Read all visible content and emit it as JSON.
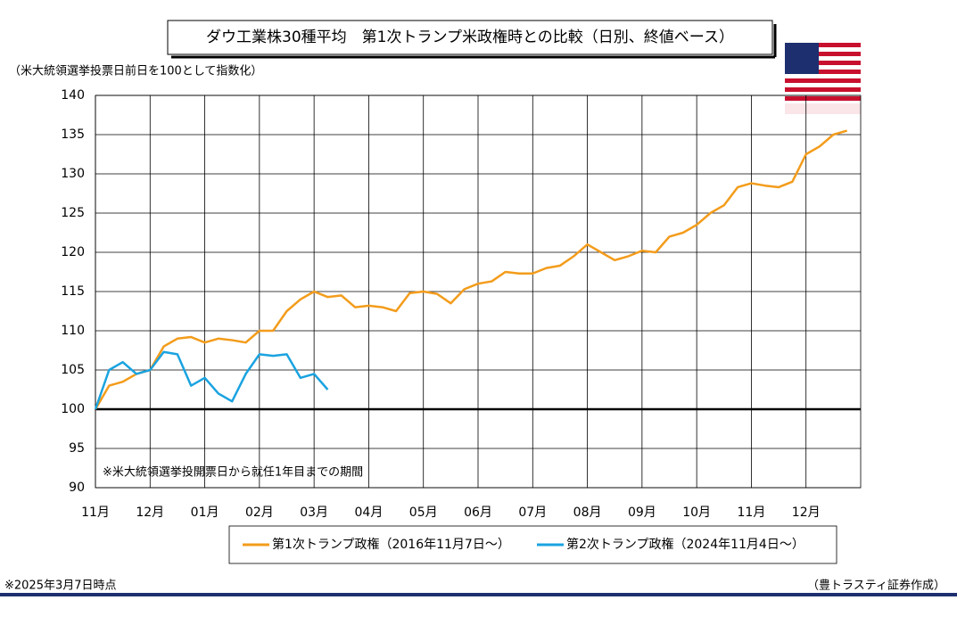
{
  "chart_data": {
    "type": "line",
    "title": "ダウ工業株30種平均　第1次トランプ米政権時との比較（日別、終値ベース）",
    "y_label": "（米大統領選挙投票日前日を100として指数化）",
    "annotation": "※米大統領選挙投開票日から就任1年目までの期間",
    "footnote_left": "※2025年3月7日時点",
    "footnote_right": "（豊トラスティ証券作成）",
    "categories": [
      "11月",
      null,
      null,
      null,
      "12月",
      null,
      null,
      null,
      "01月",
      null,
      null,
      null,
      "02月",
      null,
      null,
      null,
      "03月",
      null,
      null,
      null,
      "04月",
      null,
      null,
      null,
      "05月",
      null,
      null,
      null,
      "06月",
      null,
      null,
      null,
      "07月",
      null,
      null,
      null,
      "08月",
      null,
      null,
      null,
      "09月",
      null,
      null,
      null,
      "10月",
      null,
      null,
      null,
      "11月",
      null,
      null,
      null,
      "12月",
      null,
      null,
      null
    ],
    "series": [
      {
        "name": "第1次トランプ政権（2016年11月7日～）",
        "color": "#f39c1b",
        "values": [
          100,
          103,
          103.5,
          104.5,
          105,
          108,
          109,
          109.2,
          108.5,
          109,
          108.8,
          108.5,
          110,
          110,
          112.5,
          114,
          115,
          114.3,
          114.5,
          113,
          113.2,
          113,
          112.5,
          114.8,
          115,
          114.7,
          113.5,
          115.3,
          116,
          116.3,
          117.5,
          117.3,
          117.3,
          118,
          118.3,
          119.5,
          121,
          120,
          119,
          119.5,
          120.2,
          120,
          122,
          122.5,
          123.5,
          125,
          126,
          128.3,
          128.8,
          128.5,
          128.3,
          129,
          132.5,
          133.5,
          135,
          135.5
        ]
      },
      {
        "name": "第2次トランプ政権（2024年11月4日～）",
        "color": "#1aa3e0",
        "values": [
          100,
          105,
          106,
          104.5,
          105,
          107.3,
          107,
          103,
          104,
          102,
          101,
          104.5,
          107,
          106.8,
          107,
          104,
          104.5,
          102.5,
          null,
          null,
          null,
          null,
          null,
          null,
          null,
          null,
          null,
          null,
          null,
          null,
          null,
          null,
          null,
          null,
          null,
          null,
          null,
          null,
          null,
          null,
          null,
          null,
          null,
          null,
          null,
          null,
          null,
          null,
          null,
          null,
          null,
          null,
          null,
          null,
          null,
          null
        ]
      }
    ],
    "ylim": [
      90,
      140
    ],
    "yticks": [
      90,
      95,
      100,
      105,
      110,
      115,
      120,
      125,
      130,
      135,
      140
    ],
    "hline": 100,
    "grid": true
  }
}
